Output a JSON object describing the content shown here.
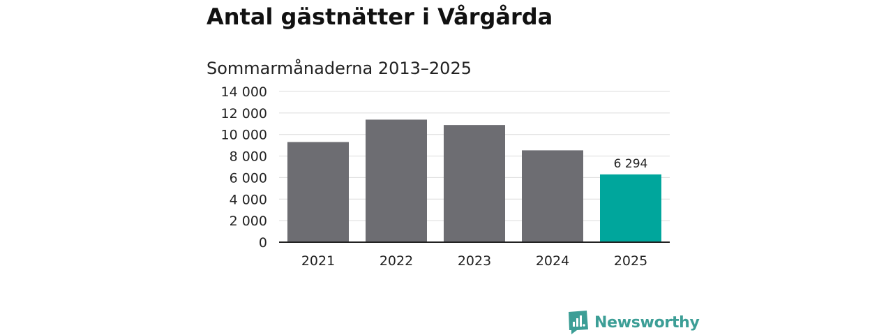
{
  "chart_data": {
    "type": "bar",
    "title": "Antal gästnätter i Vårgårda",
    "subtitle": "Sommarmånaderna 2013–2025",
    "xlabel": "",
    "ylabel": "",
    "categories": [
      "2021",
      "2022",
      "2023",
      "2024",
      "2025"
    ],
    "values": [
      9300,
      11380,
      10880,
      8530,
      6294
    ],
    "highlight_index": 4,
    "data_labels": [
      null,
      null,
      null,
      null,
      "6 294"
    ],
    "ylim": [
      0,
      14000
    ],
    "yticks": [
      0,
      2000,
      4000,
      6000,
      8000,
      10000,
      12000,
      14000
    ],
    "ytick_labels": [
      "0",
      "2 000",
      "4 000",
      "6 000",
      "8 000",
      "10 000",
      "12 000",
      "14 000"
    ],
    "grid": true,
    "legend": "none",
    "colors": {
      "bar": "#6d6d72",
      "highlight": "#00a69c",
      "grid": "#dcdcdc",
      "axis": "#222222",
      "text": "#222222"
    }
  },
  "logo": {
    "text": "Newsworthy",
    "color": "#3c9e96"
  }
}
